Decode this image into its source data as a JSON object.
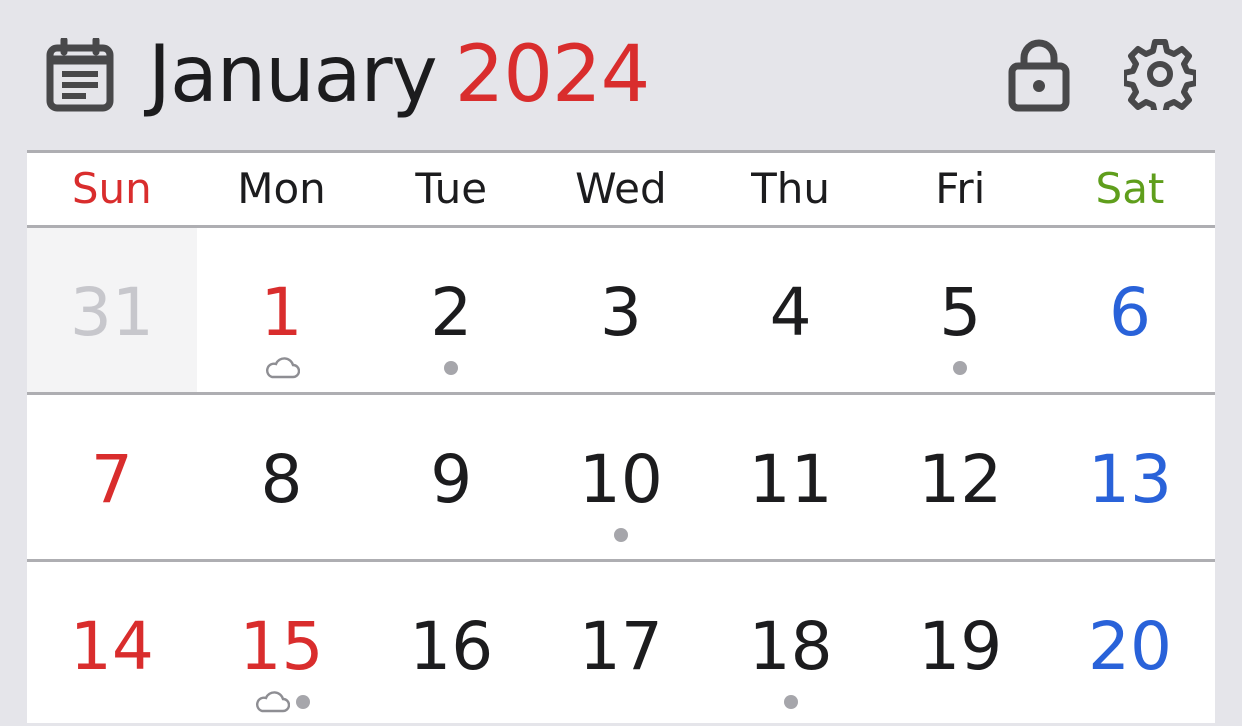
{
  "header": {
    "month": "January",
    "year": "2024",
    "icons": [
      "calendar-list-icon",
      "lock-icon",
      "gear-icon"
    ]
  },
  "colors": {
    "sunday": "#d92d2d",
    "saturday_header": "#5f9e1c",
    "saturday_date": "#2962d9",
    "holiday": "#d92d2d",
    "other_month": "#c7c7cc",
    "default": "#1c1c1e"
  },
  "weekdays": [
    "Sun",
    "Mon",
    "Tue",
    "Wed",
    "Thu",
    "Fri",
    "Sat"
  ],
  "weeks": [
    [
      {
        "day": "31",
        "kind": "other",
        "marks": []
      },
      {
        "day": "1",
        "kind": "holiday",
        "marks": [
          "cloud"
        ]
      },
      {
        "day": "2",
        "kind": "normal",
        "marks": [
          "dot"
        ]
      },
      {
        "day": "3",
        "kind": "normal",
        "marks": []
      },
      {
        "day": "4",
        "kind": "normal",
        "marks": []
      },
      {
        "day": "5",
        "kind": "normal",
        "marks": [
          "dot"
        ]
      },
      {
        "day": "6",
        "kind": "saturday",
        "marks": []
      }
    ],
    [
      {
        "day": "7",
        "kind": "sunday",
        "marks": []
      },
      {
        "day": "8",
        "kind": "normal",
        "marks": []
      },
      {
        "day": "9",
        "kind": "normal",
        "marks": []
      },
      {
        "day": "10",
        "kind": "normal",
        "marks": [
          "dot"
        ]
      },
      {
        "day": "11",
        "kind": "normal",
        "marks": []
      },
      {
        "day": "12",
        "kind": "normal",
        "marks": []
      },
      {
        "day": "13",
        "kind": "saturday",
        "marks": []
      }
    ],
    [
      {
        "day": "14",
        "kind": "sunday",
        "marks": []
      },
      {
        "day": "15",
        "kind": "holiday",
        "marks": [
          "cloud",
          "dot"
        ]
      },
      {
        "day": "16",
        "kind": "normal",
        "marks": []
      },
      {
        "day": "17",
        "kind": "normal",
        "marks": []
      },
      {
        "day": "18",
        "kind": "normal",
        "marks": [
          "dot"
        ]
      },
      {
        "day": "19",
        "kind": "normal",
        "marks": []
      },
      {
        "day": "20",
        "kind": "saturday",
        "marks": []
      }
    ]
  ]
}
